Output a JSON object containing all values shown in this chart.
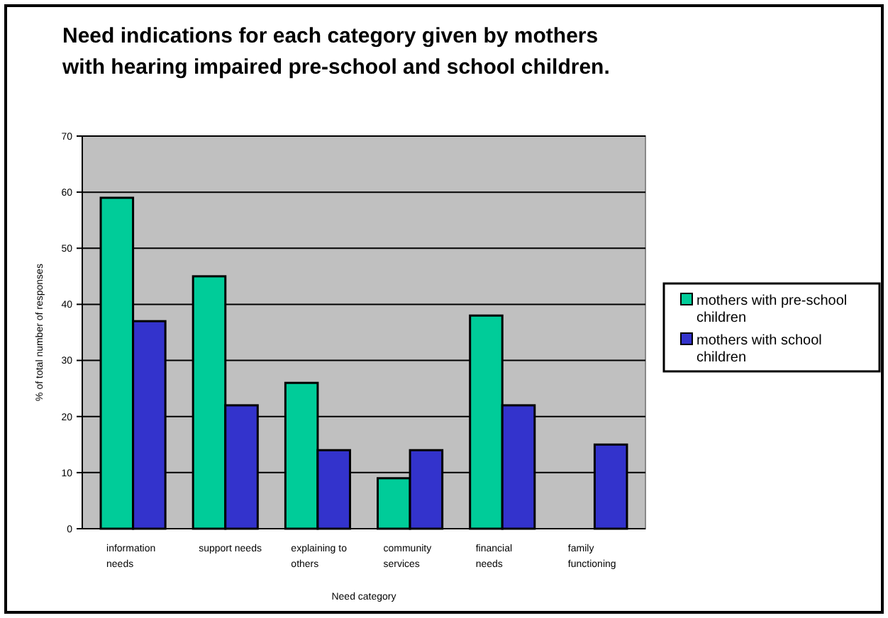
{
  "chart_data": {
    "type": "bar",
    "title": "Need indications for each category given by mothers\nwith hearing impaired pre-school and school  children.",
    "xlabel": "Need category",
    "ylabel": "% of total number of responses",
    "categories": [
      "information needs",
      "support needs",
      "explaining to others",
      "community services",
      "financial needs",
      "family functioning"
    ],
    "series": [
      {
        "name": "mothers with pre-school children",
        "color": "#00cc99",
        "values": [
          59,
          45,
          26,
          9,
          38,
          null
        ]
      },
      {
        "name": "mothers with school children",
        "color": "#3333cc",
        "values": [
          37,
          22,
          14,
          14,
          22,
          15
        ]
      }
    ],
    "ylim": [
      0,
      70
    ],
    "yticks": [
      0,
      10,
      20,
      30,
      40,
      50,
      60,
      70
    ],
    "grid": "y",
    "legend": "right"
  }
}
